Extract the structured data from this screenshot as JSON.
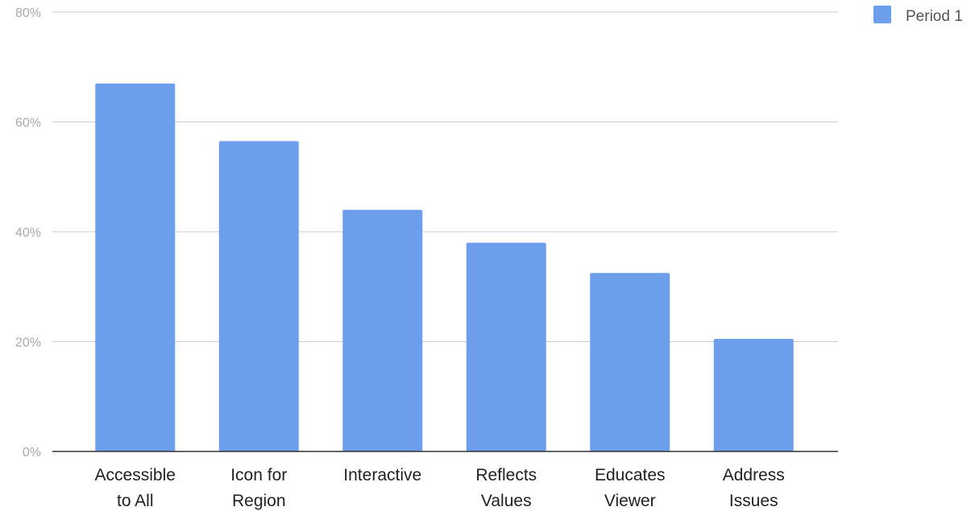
{
  "chart_data": {
    "type": "bar",
    "categories": [
      [
        "Accessible",
        "to All"
      ],
      [
        "Icon for",
        "Region"
      ],
      [
        "Interactive"
      ],
      [
        "Reflects",
        "Values"
      ],
      [
        "Educates",
        "Viewer"
      ],
      [
        "Address",
        "Issues"
      ]
    ],
    "series": [
      {
        "name": "Period 1",
        "values": [
          67,
          56.5,
          44,
          38,
          32.5,
          20.5
        ]
      }
    ],
    "ylim": [
      0,
      80
    ],
    "yticks": [
      0,
      20,
      40,
      60,
      80
    ],
    "ytick_labels": [
      "0%",
      "20%",
      "40%",
      "60%",
      "80%"
    ],
    "grid": true,
    "legend": "top-right",
    "colors": {
      "series": "#6d9eeb",
      "grid": "#cccccc",
      "axis": "#333333"
    },
    "title": "",
    "xlabel": "",
    "ylabel": ""
  }
}
